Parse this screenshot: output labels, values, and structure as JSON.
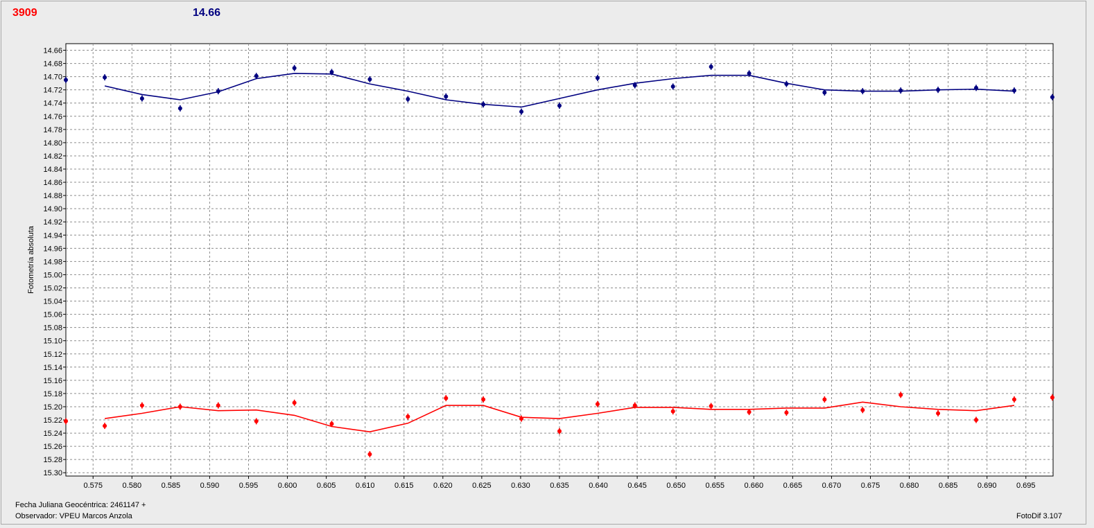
{
  "header": {
    "left_value": "3909",
    "left_color": "#ff0000",
    "right_value": "14.66",
    "right_color": "#000080"
  },
  "footer": {
    "julian_date": "Fecha Juliana Geocéntrica: 2461147 +",
    "observer": "Observador: VPEU Marcos Anzola",
    "version": "FotoDif 3.107"
  },
  "chart_data": {
    "type": "scatter",
    "title": "",
    "xlabel": "",
    "ylabel": "Fotometría absoluta",
    "xlim": [
      0.5715,
      0.6985
    ],
    "ylim": [
      14.65,
      15.305
    ],
    "y_inverted": true,
    "grid": true,
    "x_ticks": [
      "0.575",
      "0.580",
      "0.585",
      "0.590",
      "0.595",
      "0.600",
      "0.605",
      "0.610",
      "0.615",
      "0.620",
      "0.625",
      "0.630",
      "0.635",
      "0.640",
      "0.645",
      "0.650",
      "0.655",
      "0.660",
      "0.665",
      "0.670",
      "0.675",
      "0.680",
      "0.685",
      "0.690",
      "0.695"
    ],
    "y_ticks": [
      "14.66",
      "14.68",
      "14.70",
      "14.72",
      "14.74",
      "14.76",
      "14.78",
      "14.80",
      "14.82",
      "14.84",
      "14.86",
      "14.88",
      "14.90",
      "14.92",
      "14.94",
      "14.96",
      "14.98",
      "15.00",
      "15.02",
      "15.04",
      "15.06",
      "15.08",
      "15.10",
      "15.12",
      "15.14",
      "15.16",
      "15.18",
      "15.20",
      "15.22",
      "15.24",
      "15.26",
      "15.28",
      "15.30"
    ],
    "series": [
      {
        "color": "#000080",
        "points": [
          [
            0.5715,
            14.705
          ],
          [
            0.5765,
            14.701
          ],
          [
            0.5813,
            14.733
          ],
          [
            0.5862,
            14.748
          ],
          [
            0.5911,
            14.722
          ],
          [
            0.596,
            14.699
          ],
          [
            0.6009,
            14.687
          ],
          [
            0.6057,
            14.693
          ],
          [
            0.6106,
            14.704
          ],
          [
            0.6155,
            14.734
          ],
          [
            0.6204,
            14.73
          ],
          [
            0.6252,
            14.742
          ],
          [
            0.6301,
            14.753
          ],
          [
            0.635,
            14.744
          ],
          [
            0.6399,
            14.702
          ],
          [
            0.6447,
            14.713
          ],
          [
            0.6496,
            14.715
          ],
          [
            0.6545,
            14.685
          ],
          [
            0.6594,
            14.695
          ],
          [
            0.6642,
            14.711
          ],
          [
            0.6691,
            14.724
          ],
          [
            0.674,
            14.722
          ],
          [
            0.6789,
            14.721
          ],
          [
            0.6837,
            14.72
          ],
          [
            0.6886,
            14.717
          ],
          [
            0.6935,
            14.721
          ],
          [
            0.6984,
            14.731
          ]
        ],
        "line": [
          [
            0.5765,
            14.714
          ],
          [
            0.5813,
            14.727
          ],
          [
            0.5862,
            14.735
          ],
          [
            0.5911,
            14.723
          ],
          [
            0.596,
            14.703
          ],
          [
            0.6009,
            14.695
          ],
          [
            0.6057,
            14.696
          ],
          [
            0.6106,
            14.711
          ],
          [
            0.6155,
            14.722
          ],
          [
            0.6204,
            14.735
          ],
          [
            0.6252,
            14.742
          ],
          [
            0.6301,
            14.746
          ],
          [
            0.635,
            14.733
          ],
          [
            0.6399,
            14.72
          ],
          [
            0.6447,
            14.71
          ],
          [
            0.6496,
            14.703
          ],
          [
            0.6545,
            14.698
          ],
          [
            0.6594,
            14.698
          ],
          [
            0.6642,
            14.71
          ],
          [
            0.6691,
            14.72
          ],
          [
            0.674,
            14.722
          ],
          [
            0.6789,
            14.722
          ],
          [
            0.6837,
            14.72
          ],
          [
            0.6886,
            14.719
          ],
          [
            0.6935,
            14.722
          ]
        ]
      },
      {
        "color": "#ff0000",
        "points": [
          [
            0.5715,
            15.222
          ],
          [
            0.5765,
            15.229
          ],
          [
            0.5813,
            15.198
          ],
          [
            0.5862,
            15.2
          ],
          [
            0.5911,
            15.198
          ],
          [
            0.596,
            15.222
          ],
          [
            0.6009,
            15.194
          ],
          [
            0.6057,
            15.226
          ],
          [
            0.6106,
            15.272
          ],
          [
            0.6155,
            15.215
          ],
          [
            0.6204,
            15.187
          ],
          [
            0.6252,
            15.189
          ],
          [
            0.6301,
            15.218
          ],
          [
            0.635,
            15.237
          ],
          [
            0.6399,
            15.196
          ],
          [
            0.6447,
            15.198
          ],
          [
            0.6496,
            15.207
          ],
          [
            0.6545,
            15.199
          ],
          [
            0.6594,
            15.208
          ],
          [
            0.6642,
            15.209
          ],
          [
            0.6691,
            15.189
          ],
          [
            0.674,
            15.205
          ],
          [
            0.6789,
            15.182
          ],
          [
            0.6837,
            15.21
          ],
          [
            0.6886,
            15.22
          ],
          [
            0.6935,
            15.189
          ],
          [
            0.6984,
            15.186
          ]
        ],
        "line": [
          [
            0.5765,
            15.218
          ],
          [
            0.5813,
            15.21
          ],
          [
            0.5862,
            15.2
          ],
          [
            0.5911,
            15.206
          ],
          [
            0.596,
            15.205
          ],
          [
            0.6009,
            15.213
          ],
          [
            0.6057,
            15.23
          ],
          [
            0.6106,
            15.238
          ],
          [
            0.6155,
            15.225
          ],
          [
            0.6204,
            15.198
          ],
          [
            0.6252,
            15.198
          ],
          [
            0.6301,
            15.216
          ],
          [
            0.635,
            15.218
          ],
          [
            0.6399,
            15.21
          ],
          [
            0.6447,
            15.201
          ],
          [
            0.6496,
            15.201
          ],
          [
            0.6545,
            15.204
          ],
          [
            0.6594,
            15.204
          ],
          [
            0.6642,
            15.202
          ],
          [
            0.6691,
            15.202
          ],
          [
            0.674,
            15.193
          ],
          [
            0.6789,
            15.2
          ],
          [
            0.6837,
            15.204
          ],
          [
            0.6886,
            15.206
          ],
          [
            0.6935,
            15.198
          ]
        ]
      }
    ]
  }
}
